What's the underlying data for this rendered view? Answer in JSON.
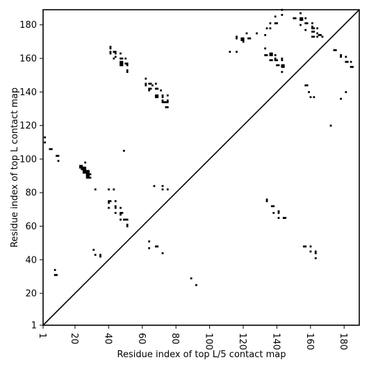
{
  "chart_data": {
    "type": "heatmap",
    "xlabel": "Residue index of top L/5 contact map",
    "ylabel": "Residue index of top L contact map",
    "xlim": [
      1,
      189
    ],
    "ylim": [
      1,
      189
    ],
    "x_ticks": [
      "1",
      "20",
      "40",
      "60",
      "80",
      "100",
      "120",
      "140",
      "160",
      "180"
    ],
    "x_tick_values": [
      1,
      20,
      40,
      60,
      80,
      100,
      120,
      140,
      160,
      180
    ],
    "y_ticks": [
      "1",
      "20",
      "40",
      "60",
      "80",
      "100",
      "120",
      "140",
      "160",
      "180"
    ],
    "y_tick_values": [
      1,
      20,
      40,
      60,
      80,
      100,
      120,
      140,
      160,
      180
    ],
    "x_tick_rotation": "vertical",
    "diagonal": true,
    "grid": false,
    "cell_color": "#000000",
    "upper_triangle_contacts": [
      [
        41,
        167
      ],
      [
        41,
        166
      ],
      [
        41,
        164
      ],
      [
        41,
        163
      ],
      [
        43,
        164
      ],
      [
        44,
        164
      ],
      [
        44,
        163
      ],
      [
        43,
        160
      ],
      [
        44,
        161
      ],
      [
        47,
        163
      ],
      [
        47,
        160
      ],
      [
        48,
        160
      ],
      [
        47,
        158
      ],
      [
        48,
        158
      ],
      [
        47,
        157
      ],
      [
        48,
        157
      ],
      [
        47,
        156
      ],
      [
        48,
        156
      ],
      [
        50,
        157
      ],
      [
        51,
        157
      ],
      [
        51,
        156
      ],
      [
        51,
        153
      ],
      [
        51,
        152
      ],
      [
        50,
        160
      ],
      [
        62,
        148
      ],
      [
        62,
        145
      ],
      [
        62,
        144
      ],
      [
        64,
        145
      ],
      [
        65,
        145
      ],
      [
        64,
        142
      ],
      [
        65,
        142
      ],
      [
        64,
        141
      ],
      [
        66,
        144
      ],
      [
        68,
        145
      ],
      [
        68,
        142
      ],
      [
        69,
        142
      ],
      [
        68,
        138
      ],
      [
        69,
        138
      ],
      [
        68,
        137
      ],
      [
        69,
        137
      ],
      [
        71,
        141
      ],
      [
        72,
        138
      ],
      [
        72,
        137
      ],
      [
        72,
        135
      ],
      [
        73,
        134
      ],
      [
        74,
        134
      ],
      [
        75,
        134
      ],
      [
        74,
        131
      ],
      [
        75,
        131
      ],
      [
        75,
        135
      ],
      [
        75,
        138
      ],
      [
        72,
        134
      ],
      [
        112,
        164
      ],
      [
        116,
        173
      ],
      [
        116,
        172
      ],
      [
        116,
        164
      ],
      [
        119,
        172
      ],
      [
        119,
        171
      ],
      [
        120,
        172
      ],
      [
        120,
        171
      ],
      [
        120,
        170
      ],
      [
        122,
        175
      ],
      [
        123,
        172
      ],
      [
        124,
        172
      ],
      [
        128,
        175
      ],
      [
        133,
        174
      ],
      [
        133,
        166
      ],
      [
        133,
        162
      ],
      [
        134,
        162
      ],
      [
        134,
        178
      ],
      [
        136,
        181
      ],
      [
        136,
        178
      ],
      [
        136,
        163
      ],
      [
        137,
        163
      ],
      [
        136,
        162
      ],
      [
        137,
        162
      ],
      [
        136,
        159
      ],
      [
        137,
        159
      ],
      [
        139,
        185
      ],
      [
        139,
        181
      ],
      [
        140,
        181
      ],
      [
        139,
        162
      ],
      [
        139,
        160
      ],
      [
        139,
        159
      ],
      [
        140,
        159
      ],
      [
        140,
        156
      ],
      [
        141,
        156
      ],
      [
        143,
        189
      ],
      [
        143,
        186
      ],
      [
        143,
        160
      ],
      [
        143,
        159
      ],
      [
        143,
        156
      ],
      [
        144,
        156
      ],
      [
        143,
        155
      ],
      [
        144,
        155
      ],
      [
        143,
        152
      ],
      [
        150,
        184
      ],
      [
        151,
        184
      ],
      [
        154,
        187
      ],
      [
        154,
        184
      ],
      [
        155,
        184
      ],
      [
        154,
        183
      ],
      [
        155,
        183
      ],
      [
        154,
        180
      ],
      [
        157,
        184
      ],
      [
        157,
        181
      ],
      [
        158,
        181
      ],
      [
        157,
        177
      ],
      [
        159,
        140
      ],
      [
        160,
        137
      ],
      [
        161,
        181
      ],
      [
        161,
        179
      ],
      [
        161,
        178
      ],
      [
        162,
        178
      ],
      [
        161,
        176
      ],
      [
        162,
        176
      ],
      [
        161,
        173
      ],
      [
        162,
        173
      ],
      [
        162,
        137
      ],
      [
        164,
        178
      ],
      [
        164,
        175
      ],
      [
        164,
        173
      ],
      [
        165,
        174
      ],
      [
        166,
        174
      ],
      [
        167,
        173
      ],
      [
        172,
        120
      ],
      [
        174,
        165
      ],
      [
        175,
        165
      ],
      [
        178,
        162
      ],
      [
        178,
        161
      ],
      [
        178,
        136
      ],
      [
        181,
        161
      ],
      [
        181,
        158
      ],
      [
        182,
        158
      ],
      [
        181,
        140
      ],
      [
        184,
        158
      ],
      [
        184,
        155
      ],
      [
        185,
        155
      ],
      [
        157,
        144
      ],
      [
        158,
        144
      ]
    ],
    "lower_triangle_contacts": [
      [
        2,
        110
      ],
      [
        2,
        113
      ],
      [
        5,
        106
      ],
      [
        6,
        106
      ],
      [
        8,
        34
      ],
      [
        8,
        31
      ],
      [
        9,
        31
      ],
      [
        9,
        102
      ],
      [
        10,
        102
      ],
      [
        10,
        99
      ],
      [
        23,
        95
      ],
      [
        23,
        96
      ],
      [
        24,
        95
      ],
      [
        24,
        96
      ],
      [
        24,
        94
      ],
      [
        25,
        95
      ],
      [
        25,
        94
      ],
      [
        25,
        93
      ],
      [
        25,
        92
      ],
      [
        26,
        95
      ],
      [
        26,
        94
      ],
      [
        26,
        93
      ],
      [
        26,
        92
      ],
      [
        26,
        98
      ],
      [
        27,
        93
      ],
      [
        27,
        92
      ],
      [
        27,
        91
      ],
      [
        27,
        90
      ],
      [
        27,
        89
      ],
      [
        28,
        93
      ],
      [
        28,
        92
      ],
      [
        28,
        91
      ],
      [
        28,
        90
      ],
      [
        28,
        89
      ],
      [
        29,
        91
      ],
      [
        29,
        89
      ],
      [
        31,
        46
      ],
      [
        32,
        43
      ],
      [
        32,
        82
      ],
      [
        35,
        43
      ],
      [
        35,
        42
      ],
      [
        40,
        82
      ],
      [
        40,
        75
      ],
      [
        41,
        75
      ],
      [
        40,
        74
      ],
      [
        40,
        71
      ],
      [
        43,
        82
      ],
      [
        44,
        75
      ],
      [
        44,
        72
      ],
      [
        44,
        71
      ],
      [
        44,
        68
      ],
      [
        47,
        71
      ],
      [
        47,
        68
      ],
      [
        48,
        68
      ],
      [
        47,
        67
      ],
      [
        47,
        64
      ],
      [
        49,
        64
      ],
      [
        50,
        64
      ],
      [
        51,
        64
      ],
      [
        51,
        61
      ],
      [
        51,
        60
      ],
      [
        49,
        105
      ],
      [
        64,
        51
      ],
      [
        64,
        47
      ],
      [
        67,
        84
      ],
      [
        68,
        48
      ],
      [
        69,
        48
      ],
      [
        72,
        84
      ],
      [
        72,
        82
      ],
      [
        72,
        44
      ],
      [
        75,
        82
      ],
      [
        89,
        29
      ],
      [
        92,
        25
      ],
      [
        134,
        76
      ],
      [
        134,
        75
      ],
      [
        137,
        72
      ],
      [
        138,
        72
      ],
      [
        138,
        68
      ],
      [
        141,
        69
      ],
      [
        141,
        68
      ],
      [
        141,
        65
      ],
      [
        144,
        65
      ],
      [
        145,
        65
      ],
      [
        156,
        48
      ],
      [
        157,
        48
      ],
      [
        160,
        48
      ],
      [
        160,
        45
      ],
      [
        163,
        45
      ],
      [
        163,
        44
      ],
      [
        163,
        41
      ]
    ]
  }
}
